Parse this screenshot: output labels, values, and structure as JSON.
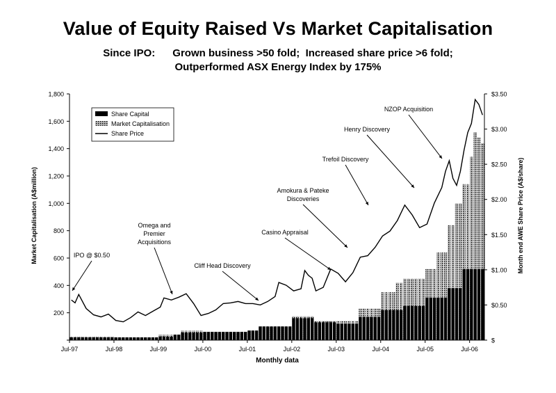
{
  "header": {
    "title": "Value of Equity Raised Vs Market Capitalisation",
    "subtitle_line1": "Since IPO:      Grown business >50 fold;  Increased share price >6 fold;",
    "subtitle_line2": "Outperformed ASX Energy Index by 175%"
  },
  "chart_data": {
    "type": "bar",
    "xlabel": "Monthly data",
    "ylabel": "Market Capitalisation (A$million)",
    "y2label": "Month end AWE Share Price (A$/share)",
    "ylim": [
      0,
      1800
    ],
    "y2lim": [
      0,
      3.5
    ],
    "yticks": [
      "",
      "200",
      "400",
      "600",
      "800",
      "1,000",
      "1,200",
      "1,400",
      "1,600",
      "1,800"
    ],
    "y2ticks": [
      "$",
      "$0.50",
      "$1.00",
      "$1.50",
      "$2.00",
      "$2.50",
      "$3.00",
      "$3.50"
    ],
    "xtick_labels": [
      "Jul-97",
      "Jul-98",
      "Jul-99",
      "Jul-00",
      "Jul-01",
      "Jul-02",
      "Jul-03",
      "Jul-04",
      "Jul-05",
      "Jul-06"
    ],
    "x_start": "Jul-97",
    "legend": {
      "position": "top-left",
      "entries": [
        "Share Capital",
        "Market Capitalisation",
        "Share Price"
      ]
    },
    "series": [
      {
        "name": "Share Capital",
        "kind": "bar",
        "color": "#000000",
        "values": [
          [
            0,
            20
          ],
          [
            12,
            20
          ],
          [
            24,
            25
          ],
          [
            28,
            40
          ],
          [
            30,
            55
          ],
          [
            36,
            60
          ],
          [
            48,
            70
          ],
          [
            51,
            100
          ],
          [
            60,
            160
          ],
          [
            66,
            130
          ],
          [
            72,
            120
          ],
          [
            78,
            170
          ],
          [
            84,
            220
          ],
          [
            90,
            250
          ],
          [
            96,
            310
          ],
          [
            102,
            380
          ],
          [
            106,
            520
          ],
          [
            110,
            520
          ]
        ]
      },
      {
        "name": "Market Capitalisation",
        "kind": "bar",
        "color": "#777777",
        "values": [
          [
            0,
            25
          ],
          [
            12,
            22
          ],
          [
            24,
            40
          ],
          [
            30,
            70
          ],
          [
            36,
            60
          ],
          [
            48,
            70
          ],
          [
            51,
            100
          ],
          [
            60,
            175
          ],
          [
            66,
            140
          ],
          [
            72,
            140
          ],
          [
            78,
            230
          ],
          [
            84,
            350
          ],
          [
            88,
            420
          ],
          [
            90,
            450
          ],
          [
            96,
            520
          ],
          [
            99,
            640
          ],
          [
            102,
            840
          ],
          [
            104,
            1000
          ],
          [
            106,
            1140
          ],
          [
            108,
            1340
          ],
          [
            109,
            1520
          ],
          [
            110,
            1480
          ],
          [
            111,
            1440
          ]
        ]
      },
      {
        "name": "Share Price",
        "kind": "line",
        "axis": "right",
        "color": "#000000",
        "values": [
          [
            0,
            0.57
          ],
          [
            1,
            0.53
          ],
          [
            2,
            0.65
          ],
          [
            4,
            0.45
          ],
          [
            6,
            0.36
          ],
          [
            8,
            0.33
          ],
          [
            10,
            0.37
          ],
          [
            12,
            0.28
          ],
          [
            14,
            0.26
          ],
          [
            16,
            0.32
          ],
          [
            18,
            0.4
          ],
          [
            20,
            0.35
          ],
          [
            22,
            0.41
          ],
          [
            24,
            0.47
          ],
          [
            25,
            0.6
          ],
          [
            27,
            0.57
          ],
          [
            29,
            0.61
          ],
          [
            31,
            0.66
          ],
          [
            33,
            0.52
          ],
          [
            35,
            0.35
          ],
          [
            37,
            0.38
          ],
          [
            39,
            0.43
          ],
          [
            41,
            0.52
          ],
          [
            43,
            0.53
          ],
          [
            45,
            0.55
          ],
          [
            47,
            0.52
          ],
          [
            49,
            0.52
          ],
          [
            51,
            0.5
          ],
          [
            53,
            0.55
          ],
          [
            55,
            0.62
          ],
          [
            56,
            0.82
          ],
          [
            58,
            0.78
          ],
          [
            60,
            0.7
          ],
          [
            62,
            0.73
          ],
          [
            63,
            0.99
          ],
          [
            64,
            0.92
          ],
          [
            65,
            0.88
          ],
          [
            66,
            0.7
          ],
          [
            68,
            0.75
          ],
          [
            70,
            1.01
          ],
          [
            72,
            0.95
          ],
          [
            74,
            0.83
          ],
          [
            76,
            0.96
          ],
          [
            78,
            1.18
          ],
          [
            80,
            1.2
          ],
          [
            82,
            1.32
          ],
          [
            84,
            1.48
          ],
          [
            86,
            1.55
          ],
          [
            88,
            1.7
          ],
          [
            90,
            1.92
          ],
          [
            92,
            1.78
          ],
          [
            94,
            1.6
          ],
          [
            96,
            1.65
          ],
          [
            98,
            1.95
          ],
          [
            100,
            2.17
          ],
          [
            101,
            2.4
          ],
          [
            102,
            2.55
          ],
          [
            103,
            2.3
          ],
          [
            104,
            2.2
          ],
          [
            105,
            2.4
          ],
          [
            106,
            2.7
          ],
          [
            107,
            2.95
          ],
          [
            108,
            3.08
          ],
          [
            109,
            3.42
          ],
          [
            110,
            3.35
          ],
          [
            111,
            3.2
          ]
        ]
      }
    ],
    "annotations": [
      {
        "text": [
          "IPO @ $0.50"
        ],
        "x": 1,
        "y": 0.55
      },
      {
        "text": [
          "Omega and",
          "Premier",
          "Acquisitions"
        ],
        "x": 26,
        "y": 0.62
      },
      {
        "text": [
          "Cliff Head Discovery"
        ],
        "x": 56,
        "y": 0.62
      },
      {
        "text": [
          "Casino Appraisal"
        ],
        "x": 80,
        "y": 1.2
      },
      {
        "text": [
          "Amokura & Pateke",
          "Discoveries"
        ],
        "x": 83,
        "y": 1.34
      },
      {
        "text": [
          "Trefoil Discovery"
        ],
        "x": 91,
        "y": 1.93
      },
      {
        "text": [
          "Henry Discovery"
        ],
        "x": 102,
        "y": 2.42
      },
      {
        "text": [
          "NZOP Acquisition"
        ],
        "x": 106,
        "y": 2.75
      }
    ]
  }
}
